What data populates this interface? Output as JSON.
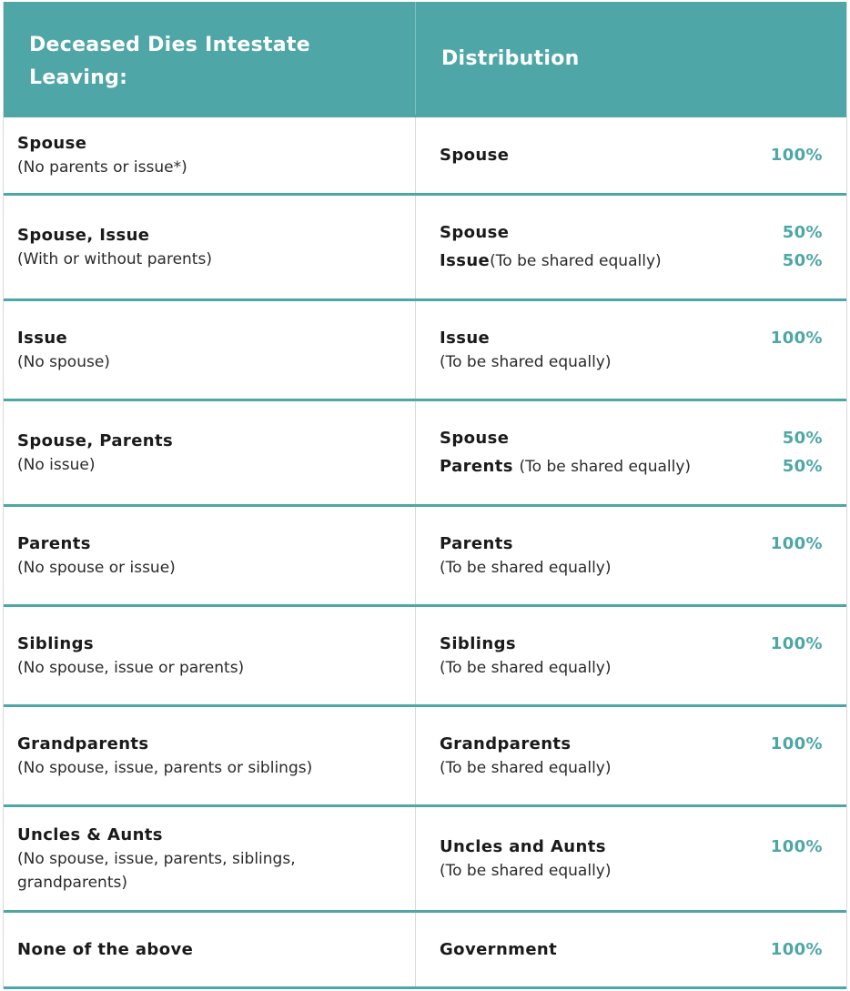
{
  "header": {
    "left_line1": "Deceased Dies Intestate",
    "left_line2": "Leaving:",
    "right": "Distribution"
  },
  "rows": [
    {
      "left_title": "Spouse",
      "left_sub": "(No parents or issue*)",
      "right_title": "Spouse",
      "right_pct": "100%"
    },
    {
      "left_title": "Spouse, Issue",
      "left_sub": "(With or without parents)",
      "right_line1_title": "Spouse",
      "right_line1_pct": "50%",
      "right_line2_title": "Issue",
      "right_line2_note": "(To be shared equally)",
      "right_line2_pct": "50%"
    },
    {
      "left_title": "Issue",
      "left_sub": "(No spouse)",
      "right_title": "Issue",
      "right_sub": "(To be shared equally)",
      "right_pct": "100%"
    },
    {
      "left_title": "Spouse, Parents",
      "left_sub": "(No issue)",
      "right_line1_title": "Spouse",
      "right_line1_pct": "50%",
      "right_line2_title": "Parents",
      "right_line2_note": "(To be shared equally)",
      "right_line2_pct": "50%"
    },
    {
      "left_title": "Parents",
      "left_sub": "(No spouse or issue)",
      "right_title": "Parents",
      "right_sub": "(To be shared equally)",
      "right_pct": "100%"
    },
    {
      "left_title": "Siblings",
      "left_sub": "(No spouse, issue or parents)",
      "right_title": "Siblings",
      "right_sub": "(To be shared equally)",
      "right_pct": "100%"
    },
    {
      "left_title": "Grandparents",
      "left_sub": "(No spouse, issue, parents or siblings)",
      "right_title": "Grandparents",
      "right_sub": "(To be shared equally)",
      "right_pct": "100%"
    },
    {
      "left_title": "Uncles & Aunts",
      "left_sub_line1": "(No spouse, issue, parents, siblings,",
      "left_sub_line2": "grandparents)",
      "right_title": "Uncles and Aunts",
      "right_sub": "(To be shared equally)",
      "right_pct": "100%"
    },
    {
      "left_title": "None of the above",
      "right_title": "Government",
      "right_pct": "100%"
    }
  ],
  "colors": {
    "accent": "#4ea6a6",
    "text": "#1a1a1a"
  }
}
